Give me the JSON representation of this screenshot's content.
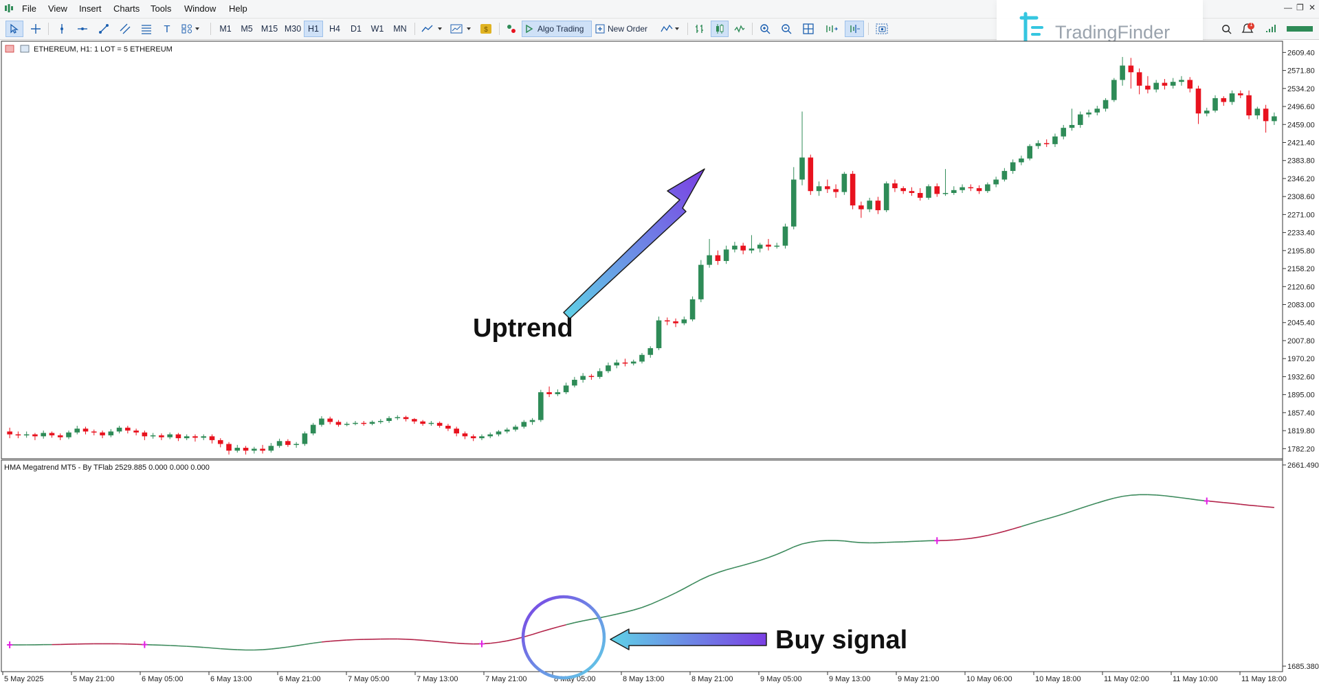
{
  "menu": [
    "File",
    "View",
    "Insert",
    "Charts",
    "Tools",
    "Window",
    "Help"
  ],
  "toolbar": {
    "timeframes": [
      "M1",
      "M5",
      "M15",
      "M30",
      "H1",
      "H4",
      "D1",
      "W1",
      "MN"
    ],
    "selected_timeframe": "H1",
    "algo_trading": "Algo Trading",
    "new_order": "New Order"
  },
  "logo": {
    "text": "TradingFinder",
    "notification_count": "1"
  },
  "chart": {
    "symbol_header": "ETHEREUM, H1:  1 LOT = 5 ETHEREUM",
    "indicator_header": "HMA Megatrend MT5 - By TFlab 2529.885 0.000 0.000 0.000",
    "price_scale": [
      "2609.40",
      "2571.80",
      "2534.20",
      "2496.60",
      "2459.00",
      "2421.40",
      "2383.80",
      "2346.20",
      "2308.60",
      "2271.00",
      "2233.40",
      "2195.80",
      "2158.20",
      "2120.60",
      "2083.00",
      "2045.40",
      "2007.80",
      "1970.20",
      "1932.60",
      "1895.00",
      "1857.40",
      "1819.80",
      "1782.20"
    ],
    "indicator_scale_top": "2661.490",
    "indicator_scale_bottom": "1685.380",
    "time_scale": [
      "5 May 2025",
      "5 May 21:00",
      "6 May 05:00",
      "6 May 13:00",
      "6 May 21:00",
      "7 May 05:00",
      "7 May 13:00",
      "7 May 21:00",
      "8 May 05:00",
      "8 May 13:00",
      "8 May 21:00",
      "9 May 05:00",
      "9 May 13:00",
      "9 May 21:00",
      "10 May 06:00",
      "10 May 18:00",
      "11 May 02:00",
      "11 May 10:00",
      "11 May 18:00"
    ]
  },
  "annotations": {
    "uptrend": "Uptrend",
    "buy_signal": "Buy signal"
  },
  "colors": {
    "bull": "#2e8b57",
    "bear": "#e8121e",
    "hma_up": "#3c8a5c",
    "hma_down": "#b3244a",
    "signal_marker": "#e020e0",
    "arrow_start": "#5fd2e6",
    "arrow_end": "#7b3fe4"
  },
  "chart_data": {
    "type": "candlestick",
    "x_range": [
      "5 May 2025",
      "11 May 21:00"
    ],
    "y_range": [
      1764,
      2630
    ],
    "candles": [
      [
        1818,
        1812,
        1826,
        1804
      ],
      [
        1812,
        1810,
        1818,
        1804
      ],
      [
        1810,
        1812,
        1818,
        1805
      ],
      [
        1812,
        1808,
        1815,
        1800
      ],
      [
        1808,
        1815,
        1820,
        1803
      ],
      [
        1815,
        1810,
        1818,
        1805
      ],
      [
        1810,
        1806,
        1814,
        1800
      ],
      [
        1806,
        1816,
        1820,
        1802
      ],
      [
        1816,
        1824,
        1830,
        1812
      ],
      [
        1824,
        1818,
        1828,
        1812
      ],
      [
        1818,
        1816,
        1822,
        1810
      ],
      [
        1816,
        1810,
        1820,
        1804
      ],
      [
        1810,
        1818,
        1823,
        1806
      ],
      [
        1818,
        1826,
        1830,
        1814
      ],
      [
        1826,
        1820,
        1830,
        1814
      ],
      [
        1820,
        1816,
        1824,
        1810
      ],
      [
        1816,
        1808,
        1820,
        1800
      ],
      [
        1808,
        1810,
        1815,
        1803
      ],
      [
        1810,
        1806,
        1814,
        1800
      ],
      [
        1806,
        1812,
        1816,
        1802
      ],
      [
        1812,
        1804,
        1815,
        1798
      ],
      [
        1804,
        1808,
        1812,
        1800
      ],
      [
        1808,
        1805,
        1812,
        1797
      ],
      [
        1805,
        1808,
        1812,
        1800
      ],
      [
        1808,
        1800,
        1812,
        1793
      ],
      [
        1800,
        1792,
        1804,
        1785
      ],
      [
        1792,
        1778,
        1796,
        1770
      ],
      [
        1778,
        1784,
        1790,
        1774
      ],
      [
        1784,
        1778,
        1788,
        1770
      ],
      [
        1778,
        1782,
        1786,
        1772
      ],
      [
        1782,
        1778,
        1790,
        1772
      ],
      [
        1778,
        1788,
        1794,
        1774
      ],
      [
        1788,
        1798,
        1803,
        1784
      ],
      [
        1798,
        1790,
        1802,
        1786
      ],
      [
        1790,
        1792,
        1796,
        1784
      ],
      [
        1792,
        1814,
        1818,
        1788
      ],
      [
        1814,
        1832,
        1836,
        1810
      ],
      [
        1832,
        1845,
        1850,
        1828
      ],
      [
        1845,
        1838,
        1849,
        1833
      ],
      [
        1838,
        1832,
        1842,
        1828
      ],
      [
        1832,
        1834,
        1838,
        1829
      ],
      [
        1834,
        1836,
        1840,
        1831
      ],
      [
        1836,
        1834,
        1840,
        1830
      ],
      [
        1834,
        1838,
        1841,
        1831
      ],
      [
        1838,
        1840,
        1844,
        1834
      ],
      [
        1840,
        1846,
        1850,
        1836
      ],
      [
        1846,
        1848,
        1852,
        1842
      ],
      [
        1848,
        1844,
        1851,
        1839
      ],
      [
        1844,
        1839,
        1846,
        1834
      ],
      [
        1839,
        1834,
        1842,
        1830
      ],
      [
        1834,
        1836,
        1840,
        1830
      ],
      [
        1836,
        1830,
        1839,
        1826
      ],
      [
        1830,
        1824,
        1834,
        1819
      ],
      [
        1824,
        1814,
        1828,
        1808
      ],
      [
        1814,
        1808,
        1818,
        1802
      ],
      [
        1808,
        1804,
        1812,
        1798
      ],
      [
        1804,
        1808,
        1812,
        1800
      ],
      [
        1808,
        1812,
        1816,
        1804
      ],
      [
        1812,
        1818,
        1821,
        1808
      ],
      [
        1818,
        1822,
        1826,
        1814
      ],
      [
        1822,
        1828,
        1832,
        1818
      ],
      [
        1828,
        1838,
        1842,
        1824
      ],
      [
        1838,
        1842,
        1846,
        1832
      ],
      [
        1842,
        1900,
        1905,
        1838
      ],
      [
        1900,
        1896,
        1912,
        1890
      ],
      [
        1896,
        1900,
        1906,
        1892
      ],
      [
        1900,
        1914,
        1920,
        1896
      ],
      [
        1914,
        1926,
        1932,
        1910
      ],
      [
        1926,
        1934,
        1940,
        1920
      ],
      [
        1934,
        1932,
        1938,
        1926
      ],
      [
        1932,
        1944,
        1950,
        1928
      ],
      [
        1944,
        1956,
        1962,
        1940
      ],
      [
        1956,
        1962,
        1968,
        1950
      ],
      [
        1962,
        1960,
        1970,
        1954
      ],
      [
        1960,
        1964,
        1968,
        1956
      ],
      [
        1964,
        1978,
        1982,
        1960
      ],
      [
        1978,
        1992,
        1996,
        1972
      ],
      [
        1992,
        2050,
        2058,
        1988
      ],
      [
        2050,
        2048,
        2056,
        2040
      ],
      [
        2048,
        2044,
        2054,
        2036
      ],
      [
        2044,
        2052,
        2058,
        2040
      ],
      [
        2052,
        2094,
        2100,
        2048
      ],
      [
        2094,
        2166,
        2176,
        2088
      ],
      [
        2166,
        2186,
        2220,
        2160
      ],
      [
        2186,
        2174,
        2196,
        2166
      ],
      [
        2174,
        2198,
        2206,
        2168
      ],
      [
        2198,
        2206,
        2214,
        2192
      ],
      [
        2206,
        2196,
        2212,
        2188
      ],
      [
        2196,
        2200,
        2228,
        2190
      ],
      [
        2200,
        2208,
        2212,
        2192
      ],
      [
        2208,
        2204,
        2220,
        2196
      ],
      [
        2204,
        2206,
        2212,
        2200
      ],
      [
        2206,
        2246,
        2252,
        2200
      ],
      [
        2246,
        2344,
        2370,
        2240
      ],
      [
        2344,
        2390,
        2486,
        2332
      ],
      [
        2390,
        2320,
        2396,
        2312
      ],
      [
        2320,
        2330,
        2340,
        2310
      ],
      [
        2330,
        2324,
        2344,
        2316
      ],
      [
        2324,
        2318,
        2334,
        2306
      ],
      [
        2318,
        2356,
        2360,
        2312
      ],
      [
        2356,
        2290,
        2362,
        2282
      ],
      [
        2290,
        2282,
        2298,
        2264
      ],
      [
        2282,
        2300,
        2306,
        2276
      ],
      [
        2300,
        2280,
        2308,
        2272
      ],
      [
        2280,
        2336,
        2340,
        2276
      ],
      [
        2336,
        2326,
        2344,
        2318
      ],
      [
        2326,
        2320,
        2330,
        2314
      ],
      [
        2320,
        2316,
        2328,
        2310
      ],
      [
        2316,
        2306,
        2326,
        2300
      ],
      [
        2306,
        2330,
        2334,
        2302
      ],
      [
        2330,
        2314,
        2336,
        2308
      ],
      [
        2314,
        2316,
        2366,
        2310
      ],
      [
        2316,
        2322,
        2330,
        2312
      ],
      [
        2322,
        2328,
        2334,
        2316
      ],
      [
        2328,
        2326,
        2334,
        2320
      ],
      [
        2326,
        2320,
        2332,
        2314
      ],
      [
        2320,
        2334,
        2338,
        2316
      ],
      [
        2334,
        2344,
        2350,
        2328
      ],
      [
        2344,
        2362,
        2368,
        2340
      ],
      [
        2362,
        2380,
        2386,
        2356
      ],
      [
        2380,
        2388,
        2394,
        2374
      ],
      [
        2388,
        2414,
        2418,
        2384
      ],
      [
        2414,
        2420,
        2426,
        2408
      ],
      [
        2420,
        2418,
        2428,
        2412
      ],
      [
        2418,
        2434,
        2440,
        2412
      ],
      [
        2434,
        2452,
        2458,
        2428
      ],
      [
        2452,
        2458,
        2492,
        2446
      ],
      [
        2458,
        2480,
        2486,
        2452
      ],
      [
        2480,
        2484,
        2490,
        2474
      ],
      [
        2484,
        2492,
        2498,
        2478
      ],
      [
        2492,
        2510,
        2514,
        2486
      ],
      [
        2510,
        2552,
        2556,
        2506
      ],
      [
        2552,
        2582,
        2600,
        2540
      ],
      [
        2582,
        2568,
        2598,
        2534
      ],
      [
        2568,
        2540,
        2576,
        2522
      ],
      [
        2540,
        2532,
        2560,
        2524
      ],
      [
        2532,
        2546,
        2552,
        2526
      ],
      [
        2546,
        2540,
        2554,
        2532
      ],
      [
        2540,
        2548,
        2556,
        2534
      ],
      [
        2548,
        2552,
        2560,
        2540
      ],
      [
        2552,
        2534,
        2558,
        2526
      ],
      [
        2534,
        2482,
        2540,
        2460
      ],
      [
        2482,
        2488,
        2494,
        2476
      ],
      [
        2488,
        2514,
        2520,
        2484
      ],
      [
        2514,
        2506,
        2518,
        2498
      ],
      [
        2506,
        2524,
        2530,
        2500
      ],
      [
        2524,
        2520,
        2530,
        2514
      ],
      [
        2520,
        2478,
        2530,
        2470
      ],
      [
        2478,
        2492,
        2496,
        2470
      ],
      [
        2492,
        2466,
        2500,
        2442
      ],
      [
        2466,
        2476,
        2484,
        2458
      ]
    ],
    "hma_indicator": {
      "y_range": [
        1685.38,
        2661.49
      ],
      "up_segments_x_fraction": [
        [
          0.0,
          0.03
        ],
        [
          0.105,
          0.24
        ],
        [
          0.435,
          0.73
        ],
        [
          0.8,
          0.945
        ]
      ],
      "signals_magenta_x_fraction": [
        0.0,
        0.105,
        0.37,
        0.73,
        0.945
      ]
    }
  }
}
